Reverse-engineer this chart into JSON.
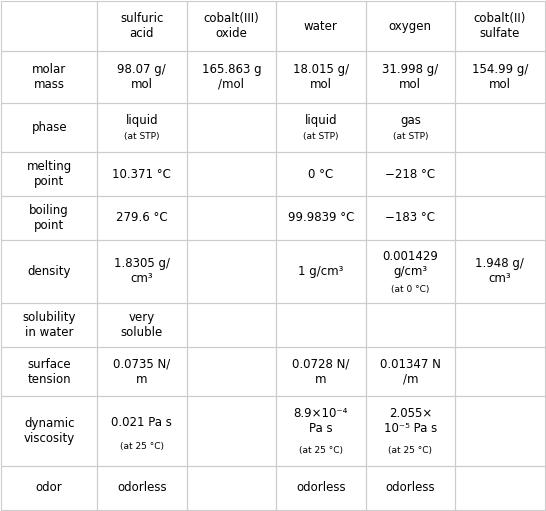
{
  "col_headers": [
    "",
    "sulfuric\nacid",
    "cobalt(III)\noxide",
    "water",
    "oxygen",
    "cobalt(II)\nsulfate"
  ],
  "rows": [
    {
      "label": "molar\nmass",
      "values": [
        "98.07 g/\nmol",
        "165.863 g\n/mol",
        "18.015 g/\nmol",
        "31.998 g/\nmol",
        "154.99 g/\nmol"
      ]
    },
    {
      "label": "phase",
      "values": [
        "liquid\n(at STP)",
        "",
        "liquid\n(at STP)",
        "gas\n(at STP)",
        ""
      ]
    },
    {
      "label": "melting\npoint",
      "values": [
        "10.371 °C",
        "",
        "0 °C",
        "−218 °C",
        ""
      ]
    },
    {
      "label": "boiling\npoint",
      "values": [
        "279.6 °C",
        "",
        "99.9839 °C",
        "−183 °C",
        ""
      ]
    },
    {
      "label": "density",
      "values": [
        "1.8305 g/\ncm³",
        "",
        "1 g/cm³",
        "0.001429\ng/cm³\n(at 0 °C)",
        "1.948 g/\ncm³"
      ]
    },
    {
      "label": "solubility\nin water",
      "values": [
        "very\nsoluble",
        "",
        "",
        "",
        ""
      ]
    },
    {
      "label": "surface\ntension",
      "values": [
        "0.0735 N/\nm",
        "",
        "0.0728 N/\nm",
        "0.01347 N\n/m",
        ""
      ]
    },
    {
      "label": "dynamic\nviscosity",
      "values": [
        "0.021 Pa s\n(at 25 °C)",
        "",
        "8.9×10⁻⁴\nPa s\n(at 25 °C)",
        "2.055×\n10⁻⁵ Pa s\n(at 25 °C)",
        ""
      ]
    },
    {
      "label": "odor",
      "values": [
        "odorless",
        "",
        "odorless",
        "odorless",
        ""
      ]
    }
  ],
  "bg_color": "#ffffff",
  "line_color": "#cccccc",
  "text_color": "#000000",
  "header_fontsize": 8.5,
  "cell_fontsize": 8.5,
  "label_fontsize": 8.5
}
